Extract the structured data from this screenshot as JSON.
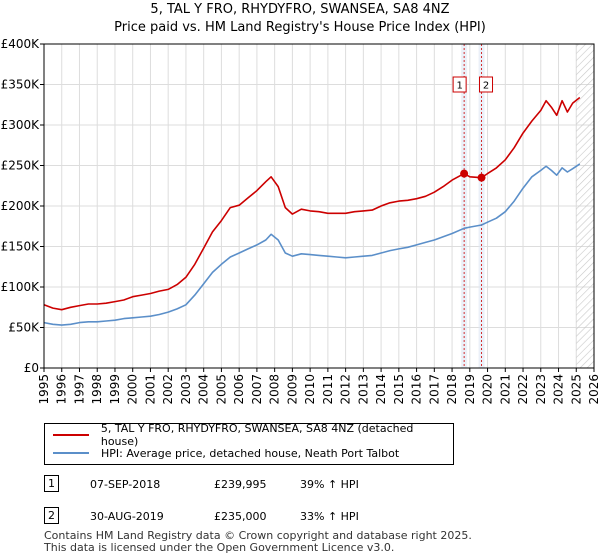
{
  "title_line1": "5, TAL Y FRO, RHYDYFRO, SWANSEA, SA8 4NZ",
  "title_line2": "Price paid vs. HM Land Registry's House Price Index (HPI)",
  "chart_data": {
    "type": "line",
    "xlim": [
      1995,
      2026
    ],
    "ylim": [
      0,
      400000
    ],
    "yticks": [
      0,
      50000,
      100000,
      150000,
      200000,
      250000,
      300000,
      350000,
      400000
    ],
    "ytick_labels": [
      "£0",
      "£50K",
      "£100K",
      "£150K",
      "£200K",
      "£250K",
      "£300K",
      "£350K",
      "£400K"
    ],
    "xticks": [
      1995,
      1996,
      1997,
      1998,
      1999,
      2000,
      2001,
      2002,
      2003,
      2004,
      2005,
      2006,
      2007,
      2008,
      2009,
      2010,
      2011,
      2012,
      2013,
      2014,
      2015,
      2016,
      2017,
      2018,
      2019,
      2020,
      2021,
      2022,
      2023,
      2024,
      2025,
      2026
    ],
    "xtick_labels": [
      "1995",
      "1996",
      "1997",
      "1998",
      "1999",
      "2000",
      "2001",
      "2002",
      "2003",
      "2004",
      "2005",
      "2006",
      "2007",
      "2008",
      "2009",
      "2010",
      "2011",
      "2012",
      "2013",
      "2014",
      "2015",
      "2016",
      "2017",
      "2018",
      "2019",
      "2020",
      "2021",
      "2022",
      "2023",
      "2024",
      "2025",
      "2026"
    ],
    "grid": true,
    "projection_start": 2025.0,
    "series": [
      {
        "name": "5, TAL Y FRO, RHYDYFRO, SWANSEA, SA8 4NZ (detached house)",
        "color": "#cc0000",
        "x": [
          1995.0,
          1995.5,
          1996.0,
          1996.5,
          1997.0,
          1997.5,
          1998.0,
          1998.5,
          1999.0,
          1999.5,
          2000.0,
          2000.5,
          2001.0,
          2001.5,
          2002.0,
          2002.5,
          2003.0,
          2003.5,
          2004.0,
          2004.5,
          2005.0,
          2005.5,
          2006.0,
          2006.5,
          2007.0,
          2007.5,
          2007.8,
          2008.2,
          2008.6,
          2009.0,
          2009.5,
          2010.0,
          2010.5,
          2011.0,
          2011.5,
          2012.0,
          2012.5,
          2013.0,
          2013.5,
          2014.0,
          2014.5,
          2015.0,
          2015.5,
          2016.0,
          2016.5,
          2017.0,
          2017.5,
          2018.0,
          2018.68,
          2019.0,
          2019.66,
          2020.0,
          2020.5,
          2021.0,
          2021.5,
          2022.0,
          2022.5,
          2023.0,
          2023.3,
          2023.6,
          2023.9,
          2024.2,
          2024.5,
          2024.8,
          2025.2
        ],
        "y": [
          78000,
          74000,
          72000,
          75000,
          77000,
          79000,
          79000,
          80000,
          82000,
          84000,
          88000,
          90000,
          92000,
          95000,
          97000,
          103000,
          112000,
          128000,
          148000,
          168000,
          182000,
          198000,
          201000,
          210000,
          219000,
          230000,
          236000,
          224000,
          198000,
          190000,
          196000,
          194000,
          193000,
          191000,
          191000,
          191000,
          193000,
          194000,
          195000,
          200000,
          204000,
          206000,
          207000,
          209000,
          212000,
          217000,
          224000,
          232000,
          239995,
          236000,
          235000,
          240000,
          247000,
          257000,
          272000,
          290000,
          305000,
          318000,
          330000,
          322000,
          312000,
          330000,
          316000,
          327000,
          334000
        ]
      },
      {
        "name": "HPI: Average price, detached house, Neath Port Talbot",
        "color": "#5b8fc9",
        "x": [
          1995.0,
          1995.5,
          1996.0,
          1996.5,
          1997.0,
          1997.5,
          1998.0,
          1998.5,
          1999.0,
          1999.5,
          2000.0,
          2000.5,
          2001.0,
          2001.5,
          2002.0,
          2002.5,
          2003.0,
          2003.5,
          2004.0,
          2004.5,
          2005.0,
          2005.5,
          2006.0,
          2006.5,
          2007.0,
          2007.5,
          2007.8,
          2008.2,
          2008.6,
          2009.0,
          2009.5,
          2010.0,
          2010.5,
          2011.0,
          2011.5,
          2012.0,
          2012.5,
          2013.0,
          2013.5,
          2014.0,
          2014.5,
          2015.0,
          2015.5,
          2016.0,
          2016.5,
          2017.0,
          2017.5,
          2018.0,
          2018.68,
          2019.0,
          2019.66,
          2020.0,
          2020.5,
          2021.0,
          2021.5,
          2022.0,
          2022.5,
          2023.0,
          2023.3,
          2023.6,
          2023.9,
          2024.2,
          2024.5,
          2024.8,
          2025.2
        ],
        "y": [
          56000,
          54000,
          53000,
          54000,
          56000,
          57000,
          57000,
          58000,
          59000,
          61000,
          62000,
          63000,
          64000,
          66000,
          69000,
          73000,
          78000,
          90000,
          104000,
          118000,
          128000,
          137000,
          142000,
          147000,
          152000,
          158000,
          165000,
          158000,
          142000,
          138000,
          141000,
          140000,
          139000,
          138000,
          137000,
          136000,
          137000,
          138000,
          139000,
          142000,
          145000,
          147000,
          149000,
          152000,
          155000,
          158000,
          162000,
          166000,
          172500,
          174000,
          176500,
          180000,
          185000,
          193000,
          206000,
          222000,
          236000,
          244000,
          249000,
          244000,
          238000,
          247000,
          242000,
          246000,
          252000
        ]
      }
    ],
    "sales": [
      {
        "label": "1",
        "x": 2018.68,
        "y": 239995
      },
      {
        "label": "2",
        "x": 2019.66,
        "y": 235000
      }
    ]
  },
  "legend": {
    "property_label": "5, TAL Y FRO, RHYDYFRO, SWANSEA, SA8 4NZ (detached house)",
    "hpi_label": "HPI: Average price, detached house, Neath Port Talbot"
  },
  "transactions": [
    {
      "num": "1",
      "date": "07-SEP-2018",
      "price": "£239,995",
      "hpi": "39% ↑ HPI"
    },
    {
      "num": "2",
      "date": "30-AUG-2019",
      "price": "£235,000",
      "hpi": "33% ↑ HPI"
    }
  ],
  "footer": {
    "line1": "Contains HM Land Registry data © Crown copyright and database right 2025.",
    "line2": "This data is licensed under the Open Government Licence v3.0."
  }
}
